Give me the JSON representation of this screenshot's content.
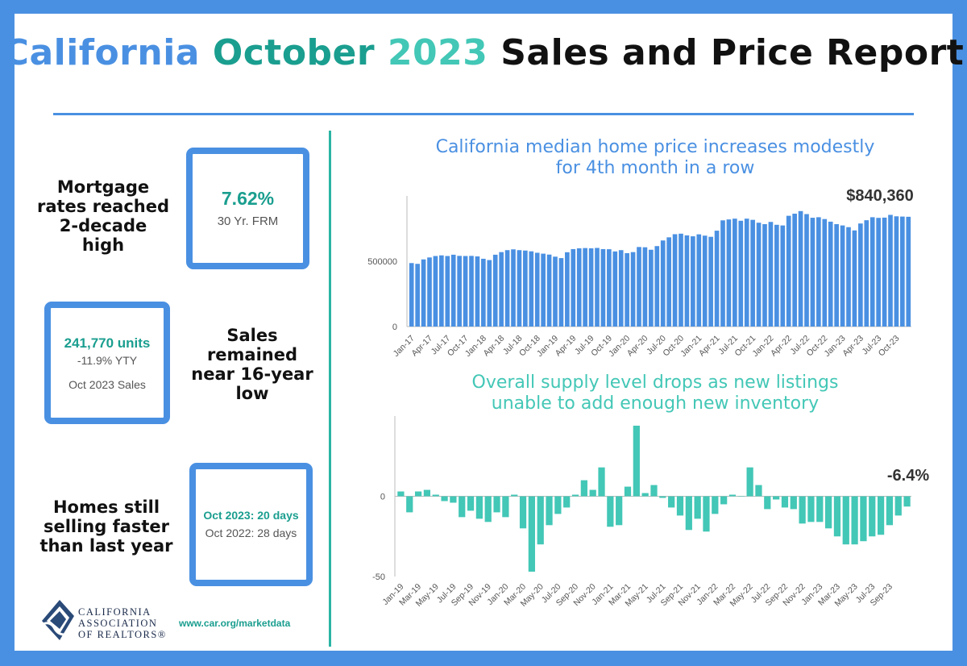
{
  "title": {
    "part1": "California",
    "part2": "October",
    "part3": "2023",
    "part4": "Sales and Price Report"
  },
  "panels": {
    "mortgage": {
      "caption_lines": [
        "Mortgage",
        "rates reached",
        "2-decade",
        "high"
      ],
      "value": "7.62%",
      "sub": "30 Yr. FRM"
    },
    "sales": {
      "caption_lines": [
        "Sales",
        "remained",
        "near 16-year",
        "low"
      ],
      "value": "241,770 units",
      "change": "-11.9% YTY",
      "sub": "Oct 2023 Sales"
    },
    "days": {
      "caption_lines": [
        "Homes still",
        "selling faster",
        "than last year"
      ],
      "current": "Oct 2023: 20 days",
      "previous": "Oct 2022: 28 days"
    }
  },
  "footer": {
    "org_lines": [
      "CALIFORNIA",
      "ASSOCIATION",
      "OF REALTORS®"
    ],
    "url": "www.car.org/marketdata"
  },
  "colors": {
    "blue": "#4a90e2",
    "teal": "#43c7b6",
    "dark_teal": "#1a9e8f"
  },
  "chart_data": [
    {
      "type": "bar",
      "title": "California median home price increases modestly for 4th month in a row",
      "title_lines": [
        "California median home price increases modestly",
        "for 4th month in a row"
      ],
      "callout": "$840,360",
      "ylim": [
        0,
        1000000
      ],
      "yticks": [
        0,
        500000
      ],
      "tick_labels": [
        "Jan-17",
        "Apr-17",
        "Jul-17",
        "Oct-17",
        "Jan-18",
        "Apr-18",
        "Jul-18",
        "Oct-18",
        "Jan-19",
        "Apr-19",
        "Jul-19",
        "Oct-19",
        "Jan-20",
        "Apr-20",
        "Jul-20",
        "Oct-20",
        "Jan-21",
        "Apr-21",
        "Jul-21",
        "Oct-21",
        "Jan-22",
        "Apr-22",
        "Jul-22",
        "Oct-22",
        "Jan-23",
        "Apr-23",
        "Jul-23",
        "Oct-23"
      ],
      "tick_every": 3,
      "color": "#4a90e2",
      "values": [
        486000,
        480000,
        514000,
        529000,
        540000,
        545000,
        540000,
        550000,
        541000,
        540000,
        541000,
        537000,
        519000,
        509000,
        550000,
        570000,
        585000,
        591000,
        585000,
        582000,
        576000,
        565000,
        558000,
        551000,
        535000,
        524000,
        569000,
        593000,
        599000,
        601000,
        599000,
        602000,
        593000,
        592000,
        575000,
        585000,
        562000,
        570000,
        609000,
        607000,
        588000,
        616000,
        659000,
        683000,
        707000,
        711000,
        698000,
        691000,
        706000,
        696000,
        687000,
        734000,
        813000,
        820000,
        826000,
        810000,
        826000,
        817000,
        795000,
        784000,
        801000,
        779000,
        774000,
        848000,
        864000,
        884000,
        861000,
        833000,
        837000,
        823000,
        803000,
        784000,
        774000,
        761000,
        736000,
        789000,
        814000,
        837000,
        832000,
        834000,
        855000,
        844000,
        842000,
        840360
      ]
    },
    {
      "type": "bar",
      "title": "Overall supply level drops as new listings unable to add enough new inventory",
      "title_lines": [
        "Overall supply level drops as new listings",
        "unable to add enough new inventory"
      ],
      "callout": "-6.4%",
      "ylim": [
        -50,
        50
      ],
      "yticks": [
        -50,
        0
      ],
      "tick_labels": [
        "Jan-19",
        "Mar-19",
        "May-19",
        "Jul-19",
        "Sep-19",
        "Nov-19",
        "Jan-20",
        "Mar-20",
        "May-20",
        "Jul-20",
        "Sep-20",
        "Nov-20",
        "Jan-21",
        "Mar-21",
        "May-21",
        "Jul-21",
        "Sep-21",
        "Nov-21",
        "Jan-22",
        "Mar-22",
        "May-22",
        "Jul-22",
        "Sep-22",
        "Nov-22",
        "Jan-23",
        "Mar-23",
        "May-23",
        "Jul-23",
        "Sep-23"
      ],
      "tick_every": 2,
      "color": "#43c7b6",
      "values": [
        3,
        -10,
        3,
        4,
        1,
        -3,
        -4,
        -13,
        -9,
        -14,
        -16,
        -10,
        -13,
        1,
        -20,
        -47,
        -30,
        -18,
        -11,
        -7,
        1,
        10,
        4,
        18,
        -19,
        -18,
        6,
        44,
        2,
        7,
        -1,
        -7,
        -12,
        -21,
        -14,
        -22,
        -11,
        -5,
        1,
        0,
        18,
        7,
        -8,
        -2,
        -7,
        -8,
        -17,
        -16,
        -16,
        -20,
        -25,
        -30,
        -30,
        -28,
        -25,
        -24,
        -18,
        -12,
        -6.4
      ]
    }
  ]
}
